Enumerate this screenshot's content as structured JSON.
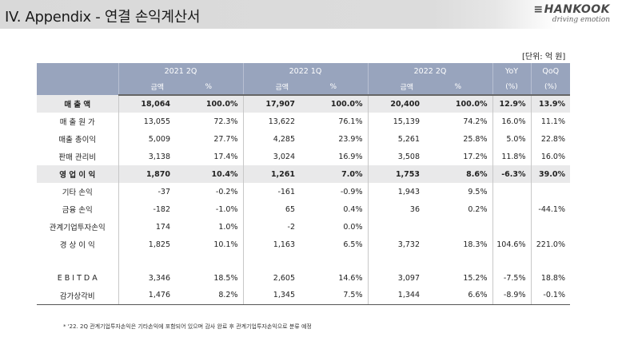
{
  "header": {
    "title": "IV. Appendix - 연결 손익계산서",
    "logo": {
      "word": "HANKOOK",
      "tagline": "driving emotion"
    }
  },
  "unit_note": "[단위: 억 원]",
  "table": {
    "periods": [
      "2021 2Q",
      "2022 1Q",
      "2022 2Q"
    ],
    "yoy_label": "YoY",
    "qoq_label": "QoQ",
    "amount_label": "금액",
    "pct_label": "%",
    "pct_paren": "(%)",
    "rows": [
      {
        "label": "매 출 액",
        "bold": true,
        "c": [
          "18,064",
          "100.0%",
          "17,907",
          "100.0%",
          "20,400",
          "100.0%",
          "12.9%",
          "13.9%"
        ]
      },
      {
        "label": "매 출 원 가",
        "bold": false,
        "c": [
          "13,055",
          "72.3%",
          "13,622",
          "76.1%",
          "15,139",
          "74.2%",
          "16.0%",
          "11.1%"
        ]
      },
      {
        "label": "매출 총이익",
        "bold": false,
        "c": [
          "5,009",
          "27.7%",
          "4,285",
          "23.9%",
          "5,261",
          "25.8%",
          "5.0%",
          "22.8%"
        ]
      },
      {
        "label": "판매 관리비",
        "bold": false,
        "c": [
          "3,138",
          "17.4%",
          "3,024",
          "16.9%",
          "3,508",
          "17.2%",
          "11.8%",
          "16.0%"
        ]
      },
      {
        "label": "영 업 이 익",
        "bold": true,
        "c": [
          "1,870",
          "10.4%",
          "1,261",
          "7.0%",
          "1,753",
          "8.6%",
          "-6.3%",
          "39.0%"
        ]
      },
      {
        "label": "기타 손익",
        "bold": false,
        "c": [
          "-37",
          "-0.2%",
          "-161",
          "-0.9%",
          "1,943",
          "9.5%",
          "",
          ""
        ]
      },
      {
        "label": "금융 손익",
        "bold": false,
        "c": [
          "-182",
          "-1.0%",
          "65",
          "0.4%",
          "36",
          "0.2%",
          "",
          "-44.1%"
        ]
      },
      {
        "label": "관계기업투자손익",
        "bold": false,
        "c": [
          "174",
          "1.0%",
          "-2",
          "0.0%",
          "",
          "",
          "",
          ""
        ]
      },
      {
        "label": "경 상 이 익",
        "bold": false,
        "c": [
          "1,825",
          "10.1%",
          "1,163",
          "6.5%",
          "3,732",
          "18.3%",
          "104.6%",
          "221.0%"
        ]
      },
      {
        "label": "E B I T D A",
        "bold": false,
        "c": [
          "3,346",
          "18.5%",
          "2,605",
          "14.6%",
          "3,097",
          "15.2%",
          "-7.5%",
          "18.8%"
        ]
      },
      {
        "label": "감가상각비",
        "bold": false,
        "c": [
          "1,476",
          "8.2%",
          "1,345",
          "7.5%",
          "1,344",
          "6.6%",
          "-8.9%",
          "-0.1%"
        ]
      }
    ]
  },
  "footnote": "* '22. 2Q  관계기업투자손익은 기타손익에 포함되어 있으며 감사 완료 후 관계기업투자손익으로 분류 예정"
}
